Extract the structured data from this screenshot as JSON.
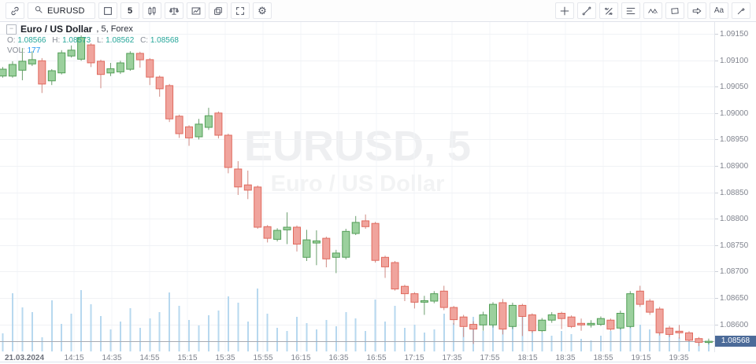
{
  "toolbar": {
    "symbol": "EURUSD",
    "interval": "5",
    "text_tool_label": "Aa",
    "left_icons": [
      "link-icon",
      "search-icon",
      "square-style-icon",
      "interval-button",
      "candles-style-icon",
      "compare-icon",
      "indicators-icon",
      "layout-icon",
      "fullscreen-icon",
      "gear-icon"
    ],
    "right_icons": [
      "crosshair-plus-icon",
      "trend-line-icon",
      "pitchfork-icon",
      "fib-lines-icon",
      "pattern-wave-icon",
      "shape-rectangle-icon",
      "arrow-tool-icon",
      "text-tool",
      "brush-icon"
    ]
  },
  "legend": {
    "title": "Euro / US Dollar",
    "subtitle": ", 5, Forex",
    "collapse_glyph": "−",
    "ohlc": {
      "o_label": "O:",
      "o": "1.08566",
      "h_label": "H:",
      "h": "1.08573",
      "l_label": "L:",
      "l": "1.08562",
      "c_label": "C:",
      "c": "1.08568"
    },
    "vol_label": "VOL:",
    "vol": "177"
  },
  "watermark": {
    "line1": "EURUSD, 5",
    "line2": "Euro / US Dollar"
  },
  "price_axis": {
    "labels": [
      "1.09150",
      "1.09100",
      "1.09050",
      "1.09000",
      "1.08950",
      "1.08900",
      "1.08850",
      "1.08800",
      "1.08750",
      "1.08700",
      "1.08650",
      "1.08600"
    ],
    "last_price": "1.08568"
  },
  "time_axis": {
    "date_label": "21.03.2024",
    "labels": [
      "14:15",
      "14:35",
      "14:55",
      "15:15",
      "15:35",
      "15:55",
      "16:15",
      "16:35",
      "16:55",
      "17:15",
      "17:35",
      "17:55",
      "18:15",
      "18:35",
      "18:55",
      "19:15",
      "19:35"
    ]
  },
  "colors": {
    "up_fill": "#9bd09d",
    "up_border": "#539e57",
    "up_wick": "#6b9e6e",
    "down_fill": "#f0a49d",
    "down_border": "#e06a5e",
    "down_wick": "#cf8b84",
    "volume": "#b7d8ef",
    "grid_h": "#f0f2f5",
    "grid_v": "#f3f5f8",
    "price_line": "#a7aab2",
    "badge_bg": "#4c6b99",
    "legend_value_green": "#26a69a",
    "legend_value_blue": "#2196f3"
  },
  "chart_data": {
    "type": "candlestick",
    "title": "Euro / US Dollar",
    "symbol": "EURUSD",
    "interval_minutes": 5,
    "market": "Forex",
    "visible_price_range": [
      1.08545,
      1.0917
    ],
    "visible_time_range": [
      "13:40",
      "19:50"
    ],
    "last_close": 1.08568,
    "last_volume": 177,
    "ohlc_order": [
      "open",
      "high",
      "low",
      "close"
    ],
    "candles": [
      [
        1.0907,
        1.09087,
        1.09067,
        1.09083
      ],
      [
        1.0907,
        1.09098,
        1.09067,
        1.09092
      ],
      [
        1.09081,
        1.09123,
        1.09062,
        1.09098
      ],
      [
        1.09093,
        1.09117,
        1.09089,
        1.09101
      ],
      [
        1.09099,
        1.09104,
        1.09038,
        1.09055
      ],
      [
        1.09061,
        1.09083,
        1.09053,
        1.0908
      ],
      [
        1.09076,
        1.09119,
        1.09073,
        1.09114
      ],
      [
        1.09108,
        1.09128,
        1.09105,
        1.09119
      ],
      [
        1.09102,
        1.09147,
        1.09099,
        1.09143
      ],
      [
        1.09129,
        1.09132,
        1.09087,
        1.09095
      ],
      [
        1.09098,
        1.09101,
        1.09047,
        1.09073
      ],
      [
        1.09076,
        1.09095,
        1.0907,
        1.09084
      ],
      [
        1.09078,
        1.09099,
        1.09074,
        1.09095
      ],
      [
        1.09083,
        1.09117,
        1.0908,
        1.09113
      ],
      [
        1.09113,
        1.09116,
        1.09086,
        1.09101
      ],
      [
        1.09101,
        1.09104,
        1.09053,
        1.09068
      ],
      [
        1.09068,
        1.09071,
        1.09031,
        1.09046
      ],
      [
        1.09052,
        1.09055,
        1.08983,
        1.08989
      ],
      [
        1.08994,
        1.08997,
        1.08953,
        1.08961
      ],
      [
        1.08974,
        1.08977,
        1.08938,
        1.08953
      ],
      [
        1.08955,
        1.08989,
        1.0895,
        1.08979
      ],
      [
        1.08973,
        1.0901,
        1.08968,
        1.08995
      ],
      [
        1.09,
        1.09003,
        1.08952,
        1.08958
      ],
      [
        1.08958,
        1.08961,
        1.08886,
        1.08897
      ],
      [
        1.08894,
        1.08909,
        1.08845,
        1.0886
      ],
      [
        1.08864,
        1.08891,
        1.08837,
        1.08854
      ],
      [
        1.0886,
        1.08863,
        1.08781,
        1.08784
      ],
      [
        1.08785,
        1.08788,
        1.08755,
        1.08763
      ],
      [
        1.08761,
        1.08782,
        1.08757,
        1.08778
      ],
      [
        1.08779,
        1.08812,
        1.08752,
        1.08784
      ],
      [
        1.08784,
        1.08787,
        1.08738,
        1.08752
      ],
      [
        1.08727,
        1.08779,
        1.0872,
        1.0876
      ],
      [
        1.08754,
        1.08778,
        1.08712,
        1.08758
      ],
      [
        1.08763,
        1.08766,
        1.08708,
        1.08724
      ],
      [
        1.08727,
        1.08741,
        1.08697,
        1.08735
      ],
      [
        1.08727,
        1.08781,
        1.08723,
        1.08776
      ],
      [
        1.08772,
        1.08805,
        1.08769,
        1.08793
      ],
      [
        1.08796,
        1.08808,
        1.08781,
        1.08785
      ],
      [
        1.08791,
        1.08794,
        1.08717,
        1.08721
      ],
      [
        1.08727,
        1.0873,
        1.08688,
        1.08709
      ],
      [
        1.08717,
        1.0872,
        1.08664,
        1.08667
      ],
      [
        1.08672,
        1.08675,
        1.08644,
        1.08658
      ],
      [
        1.08658,
        1.08661,
        1.0863,
        1.08642
      ],
      [
        1.08642,
        1.08654,
        1.08618,
        1.08645
      ],
      [
        1.08644,
        1.08663,
        1.0864,
        1.08658
      ],
      [
        1.08663,
        1.08673,
        1.08627,
        1.08632
      ],
      [
        1.08632,
        1.08635,
        1.08599,
        1.08609
      ],
      [
        1.08614,
        1.08618,
        1.08576,
        1.08596
      ],
      [
        1.086,
        1.08606,
        1.08563,
        1.08591
      ],
      [
        1.08599,
        1.08624,
        1.08588,
        1.08618
      ],
      [
        1.08599,
        1.08642,
        1.08594,
        1.08638
      ],
      [
        1.08641,
        1.08648,
        1.08581,
        1.08591
      ],
      [
        1.08596,
        1.08641,
        1.08591,
        1.08636
      ],
      [
        1.08636,
        1.08639,
        1.08578,
        1.08615
      ],
      [
        1.08618,
        1.08621,
        1.08584,
        1.08588
      ],
      [
        1.08588,
        1.08612,
        1.08585,
        1.08608
      ],
      [
        1.08608,
        1.08623,
        1.08603,
        1.08618
      ],
      [
        1.08621,
        1.08624,
        1.08591,
        1.08611
      ],
      [
        1.08614,
        1.08617,
        1.08593,
        1.08596
      ],
      [
        1.08602,
        1.08611,
        1.08588,
        1.08599
      ],
      [
        1.08599,
        1.08608,
        1.08594,
        1.08602
      ],
      [
        1.086,
        1.08615,
        1.08597,
        1.08611
      ],
      [
        1.08608,
        1.08611,
        1.08588,
        1.08591
      ],
      [
        1.08593,
        1.08626,
        1.0859,
        1.08621
      ],
      [
        1.08596,
        1.08663,
        1.08593,
        1.08658
      ],
      [
        1.08663,
        1.08673,
        1.08633,
        1.08638
      ],
      [
        1.08644,
        1.08648,
        1.08618,
        1.08623
      ],
      [
        1.08629,
        1.08633,
        1.08579,
        1.08584
      ],
      [
        1.08593,
        1.08597,
        1.08576,
        1.08581
      ],
      [
        1.08587,
        1.08599,
        1.08573,
        1.08584
      ],
      [
        1.08584,
        1.08587,
        1.08568,
        1.0857
      ],
      [
        1.08573,
        1.08576,
        1.08559,
        1.08566
      ],
      [
        1.08566,
        1.08573,
        1.08562,
        1.08568
      ]
    ],
    "volumes": [
      345,
      1110,
      840,
      750,
      270,
      975,
      525,
      720,
      1170,
      900,
      675,
      420,
      570,
      825,
      450,
      630,
      750,
      1125,
      870,
      600,
      495,
      690,
      780,
      1050,
      930,
      570,
      1200,
      720,
      450,
      390,
      660,
      540,
      420,
      600,
      480,
      750,
      630,
      390,
      990,
      570,
      870,
      450,
      510,
      360,
      420,
      720,
      540,
      450,
      660,
      390,
      600,
      840,
      570,
      690,
      450,
      360,
      300,
      390,
      330,
      240,
      210,
      300,
      390,
      540,
      900,
      510,
      420,
      780,
      360,
      270,
      330,
      240,
      177
    ]
  }
}
